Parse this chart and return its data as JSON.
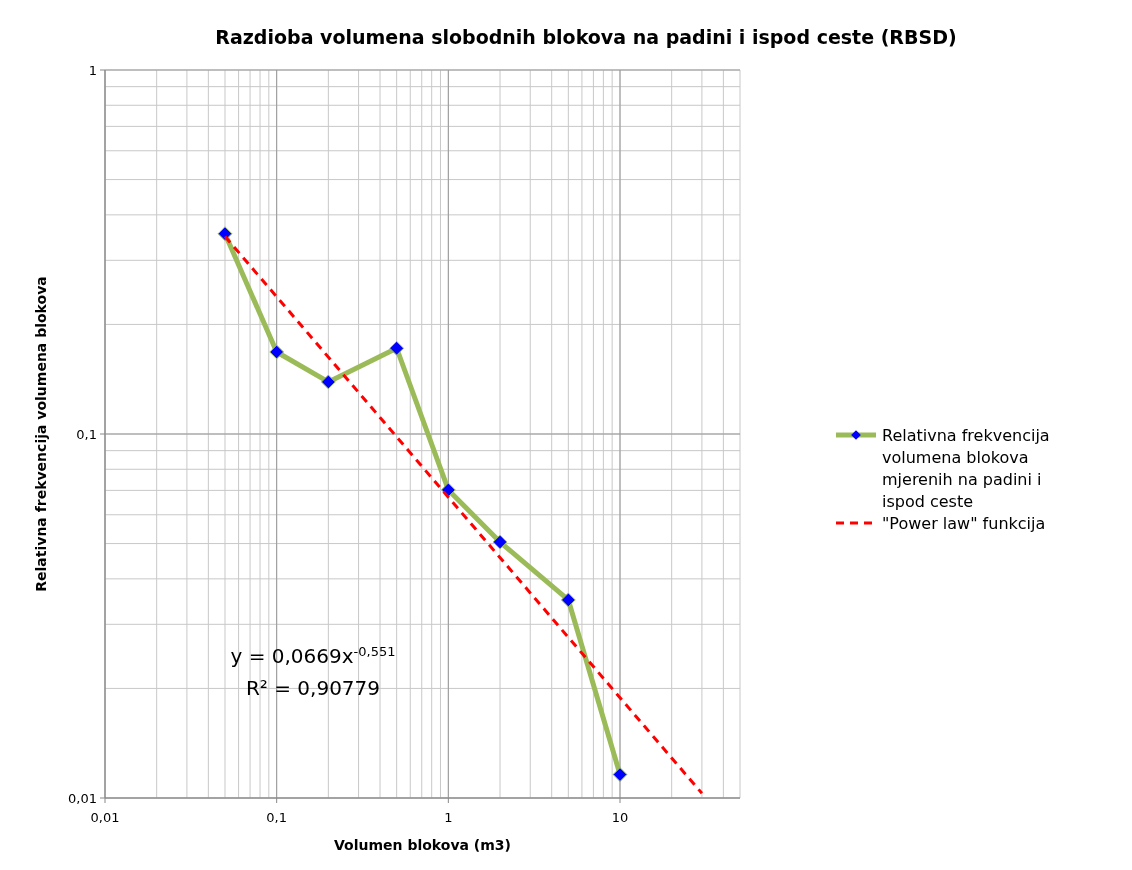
{
  "chart_data": {
    "type": "line",
    "title": "Razdioba volumena slobodnih blokova na padini i ispod ceste (RBSD)",
    "xlabel": "Volumen blokova (m3)",
    "ylabel": "Relativna frekvencija volumena blokova",
    "log": "xy",
    "grid": true,
    "legend": "right",
    "marker": "diamond",
    "x": [
      0.05,
      0.1,
      0.2,
      0.5,
      1,
      2,
      5,
      10
    ],
    "xlim": [
      0.01,
      50
    ],
    "xticks": [
      {
        "value": 0.01,
        "label": "0,01"
      },
      {
        "value": 0.1,
        "label": "0,1"
      },
      1,
      10
    ],
    "ylim": [
      0.01,
      1
    ],
    "yticks": [
      {
        "value": 0.01,
        "label": "0,01"
      },
      {
        "value": 0.1,
        "label": "0,1"
      },
      1
    ],
    "series": [
      {
        "name": "Relativna frekvencija volumena blokova mjerenih na padini i ispod ceste",
        "color": "#9bbb59",
        "values": [
          0.355,
          0.168,
          0.139,
          0.172,
          0.0702,
          0.0505,
          0.035,
          0.0116
        ]
      },
      {
        "name": "\"Power law\" funkcija",
        "color": "#ff0000",
        "type": "line",
        "line_style": "dashed",
        "marker": "none",
        "x": [
          0.05,
          30
        ],
        "values": [
          0.349,
          0.0103
        ]
      }
    ],
    "annotations": [
      "y = 0,0669x$^{-0,551}$",
      "R² = 0,90779"
    ]
  }
}
